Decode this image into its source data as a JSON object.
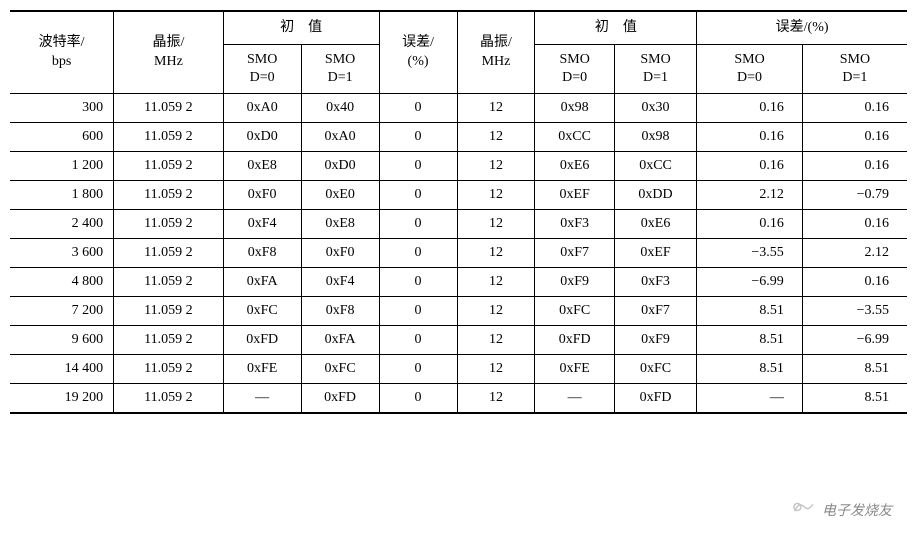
{
  "table": {
    "type": "table",
    "headers": {
      "baud": "波特率/\nbps",
      "xtal": "晶振/\nMHz",
      "initial_value": "初　值",
      "error_pct": "误差/\n(%)",
      "error_pct_wide": "误差/(%)",
      "smod0": "SMO\nD=0",
      "smod1": "SMO\nD=1"
    },
    "columns": [
      "baud",
      "xtal1",
      "init1_smod0",
      "init1_smod1",
      "err1",
      "xtal2",
      "init2_smod0",
      "init2_smod1",
      "err2_smod0",
      "err2_smod1"
    ],
    "rows": [
      {
        "baud": "300",
        "xtal1": "11.059 2",
        "i1s0": "0xA0",
        "i1s1": "0x40",
        "e1": "0",
        "xtal2": "12",
        "i2s0": "0x98",
        "i2s1": "0x30",
        "e2s0": "0.16",
        "e2s1": "0.16"
      },
      {
        "baud": "600",
        "xtal1": "11.059 2",
        "i1s0": "0xD0",
        "i1s1": "0xA0",
        "e1": "0",
        "xtal2": "12",
        "i2s0": "0xCC",
        "i2s1": "0x98",
        "e2s0": "0.16",
        "e2s1": "0.16"
      },
      {
        "baud": "1 200",
        "xtal1": "11.059 2",
        "i1s0": "0xE8",
        "i1s1": "0xD0",
        "e1": "0",
        "xtal2": "12",
        "i2s0": "0xE6",
        "i2s1": "0xCC",
        "e2s0": "0.16",
        "e2s1": "0.16"
      },
      {
        "baud": "1 800",
        "xtal1": "11.059 2",
        "i1s0": "0xF0",
        "i1s1": "0xE0",
        "e1": "0",
        "xtal2": "12",
        "i2s0": "0xEF",
        "i2s1": "0xDD",
        "e2s0": "2.12",
        "e2s1": "−0.79"
      },
      {
        "baud": "2 400",
        "xtal1": "11.059 2",
        "i1s0": "0xF4",
        "i1s1": "0xE8",
        "e1": "0",
        "xtal2": "12",
        "i2s0": "0xF3",
        "i2s1": "0xE6",
        "e2s0": "0.16",
        "e2s1": "0.16"
      },
      {
        "baud": "3 600",
        "xtal1": "11.059 2",
        "i1s0": "0xF8",
        "i1s1": "0xF0",
        "e1": "0",
        "xtal2": "12",
        "i2s0": "0xF7",
        "i2s1": "0xEF",
        "e2s0": "−3.55",
        "e2s1": "2.12"
      },
      {
        "baud": "4 800",
        "xtal1": "11.059 2",
        "i1s0": "0xFA",
        "i1s1": "0xF4",
        "e1": "0",
        "xtal2": "12",
        "i2s0": "0xF9",
        "i2s1": "0xF3",
        "e2s0": "−6.99",
        "e2s1": "0.16"
      },
      {
        "baud": "7 200",
        "xtal1": "11.059 2",
        "i1s0": "0xFC",
        "i1s1": "0xF8",
        "e1": "0",
        "xtal2": "12",
        "i2s0": "0xFC",
        "i2s1": "0xF7",
        "e2s0": "8.51",
        "e2s1": "−3.55"
      },
      {
        "baud": "9 600",
        "xtal1": "11.059 2",
        "i1s0": "0xFD",
        "i1s1": "0xFA",
        "e1": "0",
        "xtal2": "12",
        "i2s0": "0xFD",
        "i2s1": "0xF9",
        "e2s0": "8.51",
        "e2s1": "−6.99"
      },
      {
        "baud": "14 400",
        "xtal1": "11.059 2",
        "i1s0": "0xFE",
        "i1s1": "0xFC",
        "e1": "0",
        "xtal2": "12",
        "i2s0": "0xFE",
        "i2s1": "0xFC",
        "e2s0": "8.51",
        "e2s1": "8.51"
      },
      {
        "baud": "19 200",
        "xtal1": "11.059 2",
        "i1s0": "—",
        "i1s1": "0xFD",
        "e1": "0",
        "xtal2": "12",
        "i2s0": "—",
        "i2s1": "0xFD",
        "e2s0": "—",
        "e2s1": "8.51"
      }
    ],
    "styling": {
      "border_color": "#000000",
      "background_color": "#ffffff",
      "font_family": "SimSun",
      "font_size": 14,
      "header_border_top_width": 2,
      "footer_border_bottom_width": 2,
      "row_border_width": 1
    }
  },
  "watermark": {
    "text": "电子发烧友",
    "color": "#888888"
  }
}
